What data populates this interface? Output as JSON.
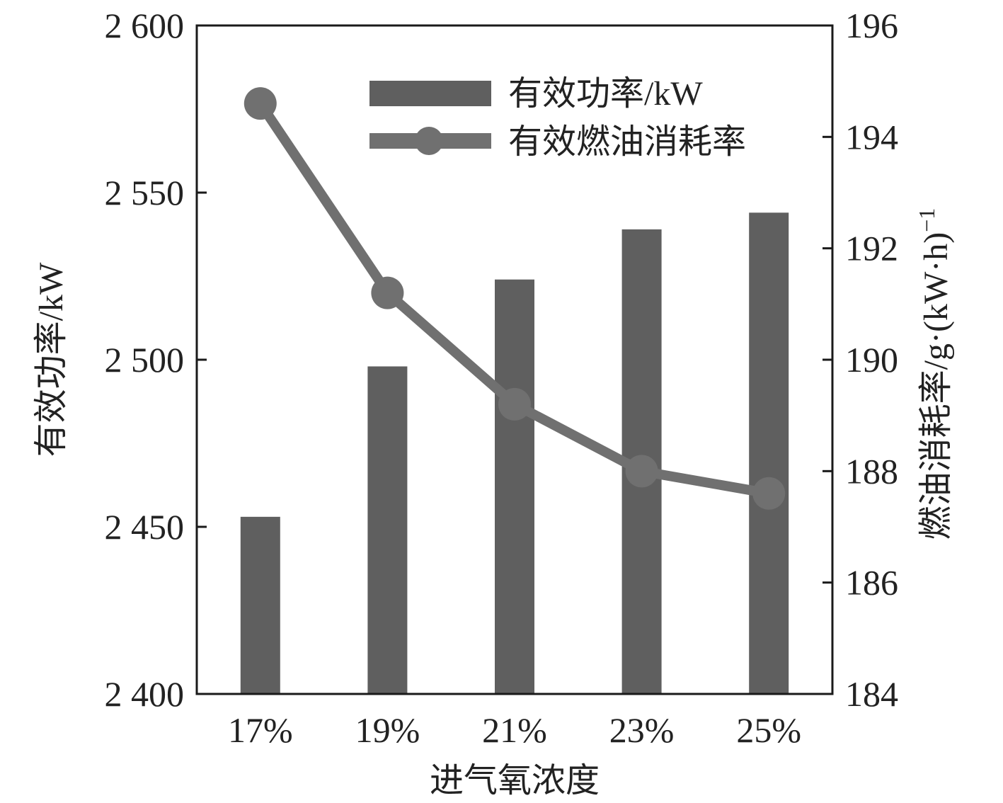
{
  "colors": {
    "bar": "#5f5f5f",
    "line": "#707070",
    "axis": "#1a1a1a",
    "text": "#222222"
  },
  "chart_data": {
    "type": "bar",
    "categories": [
      "17%",
      "19%",
      "21%",
      "23%",
      "25%"
    ],
    "xlabel": "进气氧浓度",
    "ylabel_left": "有效功率/kW",
    "ylabel_right": "燃油消耗率/g·(kW·h)",
    "ylabel_right_superscript": "−1",
    "ylim_left": [
      2400,
      2600
    ],
    "yticks_left": [
      "2 400",
      "2 450",
      "2 500",
      "2 550",
      "2 600"
    ],
    "ylim_right": [
      184,
      196
    ],
    "yticks_right": [
      "184",
      "186",
      "188",
      "190",
      "192",
      "194",
      "196"
    ],
    "grid": false,
    "legend_position": "top-right",
    "series": [
      {
        "name": "有效功率/kW",
        "type": "bar",
        "axis": "left",
        "values": [
          2453,
          2498,
          2524,
          2539,
          2544
        ]
      },
      {
        "name": "有效燃油消耗率",
        "type": "line",
        "axis": "right",
        "values": [
          194.6,
          191.2,
          189.2,
          188.0,
          187.6
        ]
      }
    ]
  }
}
